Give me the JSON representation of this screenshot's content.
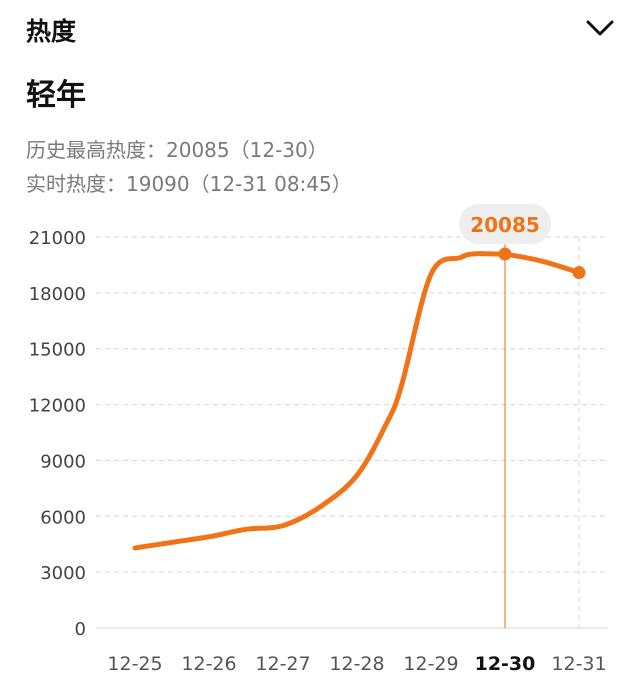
{
  "header": {
    "title": "热度",
    "toggle_icon": "chevron-down-icon"
  },
  "topic": {
    "name": "轻年"
  },
  "stats": {
    "peak_label": "历史最高热度：",
    "peak_value": "20085",
    "peak_date": "（12-30）",
    "realtime_label": "实时热度：",
    "realtime_value": "19090",
    "realtime_time": "（12-31 08:45）"
  },
  "chart_data": {
    "type": "line",
    "categories": [
      "12-25",
      "12-26",
      "12-27",
      "12-28",
      "12-29",
      "12-30",
      "12-31"
    ],
    "selected_category": "12-30",
    "x": [
      0,
      0.5,
      1,
      1.5,
      2,
      2.5,
      3,
      3.4,
      3.6,
      4,
      4.4,
      4.6,
      4.9,
      5,
      5.5,
      6
    ],
    "y": [
      4300,
      4600,
      4900,
      5300,
      5500,
      6500,
      8200,
      11000,
      13000,
      19000,
      19900,
      20100,
      20085,
      20085,
      19700,
      19090
    ],
    "ylim": [
      0,
      21000
    ],
    "yticks": [
      0,
      3000,
      6000,
      9000,
      12000,
      15000,
      18000,
      21000
    ],
    "highlight": {
      "category": "12-30",
      "value": 20085,
      "label": "20085"
    },
    "endpoint": {
      "category": "12-31",
      "value": 19090
    },
    "grid": true,
    "line_color": "#F07318",
    "label_bg_color": "#EEEEEE"
  }
}
